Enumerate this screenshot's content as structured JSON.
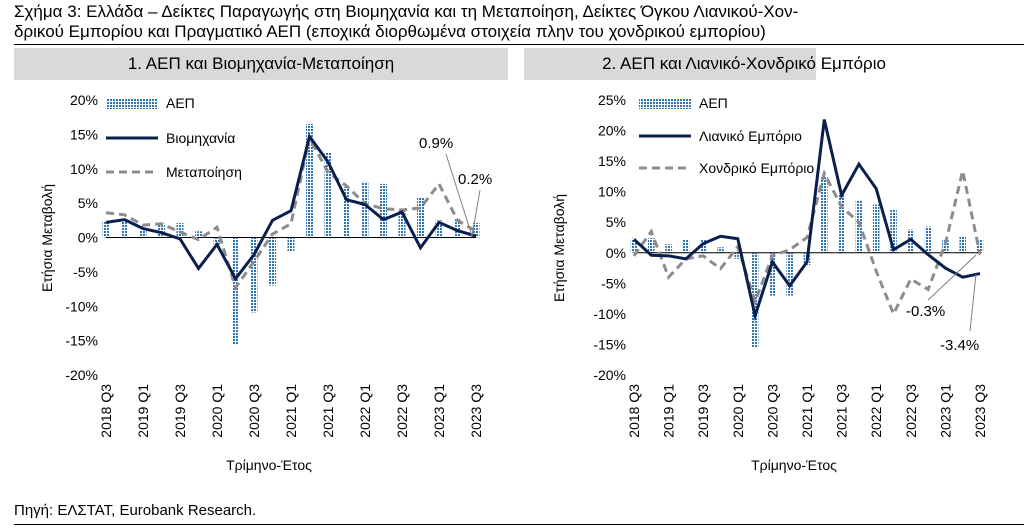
{
  "figure": {
    "caption_line1": "Σχήμα 3: Ελλάδα – Δείκτες Παραγωγής στη Βιομηχανία και τη Μεταποίηση, Δείκτες Όγκου Λιανικού-Χον-",
    "caption_line2": "δρικού Εμπορίου και Πραγματικό ΑΕΠ (εποχικά διορθωμένα στοιχεία πλην του χονδρικού εμπορίου)",
    "source": "Πηγή: ΕΛΣΤΑΤ, Eurobank Research."
  },
  "colors": {
    "navy": "#0b1f4d",
    "gdp_blue": "#2e75b6",
    "grey_dash": "#8c8c8c",
    "panel_bg": "#d9d9d9"
  },
  "chart_data": [
    {
      "type": "bar",
      "title": "1. ΑΕΠ και Βιομηχανία-Μεταποίηση",
      "xlabel": "Τρίμηνο-Έτος",
      "ylabel": "Ετήσια Μεταβολή",
      "ylim": [
        -20,
        20
      ],
      "yticks": [
        -20,
        -15,
        -10,
        -5,
        0,
        5,
        10,
        15,
        20
      ],
      "ytick_labels": [
        "-20%",
        "-15%",
        "-10%",
        "-5%",
        "0%",
        "5%",
        "10%",
        "15%",
        "20%"
      ],
      "categories": [
        "2018 Q3",
        "2018 Q4",
        "2019 Q1",
        "2019 Q2",
        "2019 Q3",
        "2019 Q4",
        "2020 Q1",
        "2020 Q2",
        "2020 Q3",
        "2020 Q4",
        "2021 Q1",
        "2021 Q2",
        "2021 Q3",
        "2021 Q4",
        "2022 Q1",
        "2022 Q2",
        "2022 Q3",
        "2022 Q4",
        "2023 Q1",
        "2023 Q2",
        "2023 Q3"
      ],
      "tick_labels": [
        "2018 Q3",
        "2019 Q1",
        "2019 Q3",
        "2020 Q1",
        "2020 Q3",
        "2021 Q1",
        "2021 Q3",
        "2022 Q1",
        "2022 Q3",
        "2023 Q1",
        "2023 Q3"
      ],
      "legend_position": "top-left",
      "series": [
        {
          "name": "ΑΕΠ",
          "kind": "bar",
          "values": [
            2.3,
            2.6,
            1.0,
            2.0,
            2.1,
            0.9,
            -1.0,
            -15.5,
            -10.9,
            -7.0,
            -2.0,
            16.5,
            12.4,
            7.3,
            8.1,
            7.8,
            3.9,
            5.9,
            2.5,
            2.7,
            2.1
          ]
        },
        {
          "name": "Βιομηχανία",
          "kind": "line",
          "values": [
            2.2,
            2.6,
            1.3,
            0.7,
            -0.2,
            -4.5,
            -1.0,
            -6.0,
            -2.5,
            2.5,
            3.9,
            14.7,
            11.0,
            5.5,
            4.8,
            2.6,
            3.7,
            -1.5,
            2.2,
            1.0,
            0.2
          ]
        },
        {
          "name": "Μεταποίηση",
          "kind": "dashed",
          "values": [
            3.6,
            3.3,
            1.8,
            2.0,
            0.8,
            -0.3,
            1.5,
            -7.3,
            -3.5,
            0.5,
            2.0,
            14.5,
            9.5,
            7.5,
            4.9,
            4.2,
            4.0,
            4.3,
            7.8,
            2.5,
            0.9
          ]
        }
      ],
      "annotations": [
        {
          "text": "0.9%"
        },
        {
          "text": "0.2%"
        }
      ]
    },
    {
      "type": "bar",
      "title": "2. ΑΕΠ και Λιανικό-Χονδρικό Εμπόριο",
      "xlabel": "Τρίμηνο-Έτος",
      "ylabel": "Ετήσια Μεταβολή",
      "ylim": [
        -20,
        25
      ],
      "yticks": [
        -20,
        -15,
        -10,
        -5,
        0,
        5,
        10,
        15,
        20,
        25
      ],
      "ytick_labels": [
        "-20%",
        "-15%",
        "-10%",
        "-5%",
        "0%",
        "5%",
        "10%",
        "15%",
        "20%",
        "25%"
      ],
      "categories": [
        "2018 Q3",
        "2018 Q4",
        "2019 Q1",
        "2019 Q2",
        "2019 Q3",
        "2019 Q4",
        "2020 Q1",
        "2020 Q2",
        "2020 Q3",
        "2020 Q4",
        "2021 Q1",
        "2021 Q2",
        "2021 Q3",
        "2021 Q4",
        "2022 Q1",
        "2022 Q2",
        "2022 Q3",
        "2022 Q4",
        "2023 Q1",
        "2023 Q2",
        "2023 Q3"
      ],
      "tick_labels": [
        "2018 Q3",
        "2019 Q1",
        "2019 Q3",
        "2020 Q1",
        "2020 Q3",
        "2021 Q1",
        "2021 Q3",
        "2022 Q1",
        "2022 Q3",
        "2023 Q1",
        "2023 Q3"
      ],
      "legend_position": "top-left",
      "series": [
        {
          "name": "ΑΕΠ",
          "kind": "bar",
          "values": [
            2.3,
            2.4,
            1.4,
            2.1,
            2.2,
            0.9,
            -1.0,
            -15.5,
            -7.0,
            -7.0,
            -2.0,
            12.5,
            9.5,
            8.6,
            7.9,
            7.0,
            3.8,
            4.3,
            2.2,
            2.7,
            2.1
          ]
        },
        {
          "name": "Λιανικό Εμπόριο",
          "kind": "line",
          "values": [
            2.2,
            -0.4,
            -0.5,
            -1.0,
            1.5,
            2.7,
            2.3,
            -10.3,
            -1.5,
            -5.4,
            -1.5,
            21.8,
            9.4,
            14.5,
            10.5,
            0.5,
            2.2,
            -0.3,
            -2.5,
            -4.0,
            -3.4
          ]
        },
        {
          "name": "Χονδρικό Εμπόριο",
          "kind": "dashed",
          "values": [
            -0.5,
            3.5,
            -4.0,
            -1.0,
            -0.5,
            -2.6,
            1.0,
            -8.0,
            -0.5,
            0.5,
            2.5,
            13.0,
            7.5,
            5.0,
            -3.0,
            -10.0,
            -4.3,
            -6.0,
            1.5,
            13.4,
            -0.3
          ]
        }
      ],
      "annotations": [
        {
          "text": "-0.3%"
        },
        {
          "text": "-3.4%"
        }
      ]
    }
  ]
}
